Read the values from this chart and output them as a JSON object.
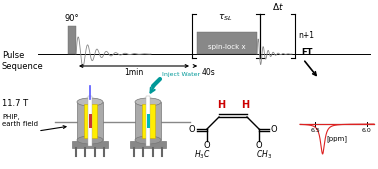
{
  "background_color": "#ffffff",
  "fig_width": 3.78,
  "fig_height": 1.69,
  "dpi": 100,
  "pulse_seq_label": "Pulse\nSequence",
  "ninety_deg_label": "90°",
  "tau_sl_label": "τ",
  "tau_sl_sub": "SL",
  "delta_t_label": "Δt",
  "spin_lock_label": "spin-lock x",
  "one_min_label": "1min",
  "forty_s_label": "40s",
  "n1_label": "n+1",
  "ft_label": "FT",
  "inject_water_label": "Inject Water",
  "field_label": "11.7 T",
  "phip_label": "PHIP,\nearth field",
  "ppm_axis_label": "[ppm]",
  "spectrum_peak_ppm": 6.43,
  "spectrum_color": "#dd2222",
  "dark_gray": "#666666",
  "medium_gray": "#999999",
  "light_gray": "#cccccc",
  "yellow_color": "#ffee00",
  "cyan_color": "#00cccc",
  "red_color": "#cc0000",
  "blue_color": "#4444ff",
  "teal_color": "#009999",
  "ppm_min": 5.93,
  "ppm_max": 6.65,
  "ppm_ticks": [
    6.5,
    6.0
  ],
  "ppm_tick_labels": [
    "6.5",
    "6.0"
  ]
}
